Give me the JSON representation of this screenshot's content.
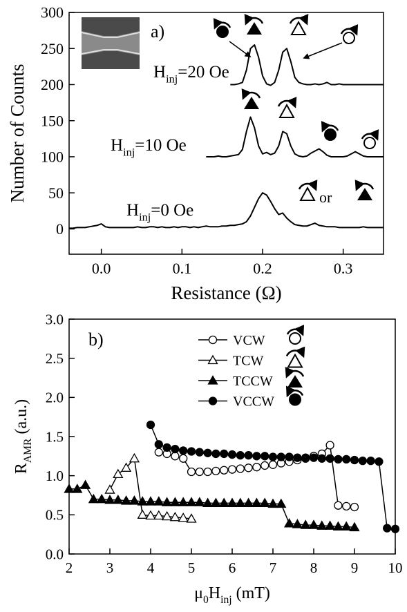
{
  "chart_data": [
    {
      "type": "line",
      "xlabel": "Resistance (Ω)",
      "ylabel": "Number of Counts",
      "xlim": [
        -0.04,
        0.35
      ],
      "ylim": [
        -35,
        300
      ],
      "xticks": [
        {
          "value": 0,
          "label": "0.0"
        },
        0.1,
        0.2,
        0.3
      ],
      "yticks": [
        0,
        50,
        100,
        150,
        200,
        250,
        300
      ],
      "grid": false,
      "annotations": [
        {
          "text": "a)"
        },
        {
          "text": "or"
        }
      ],
      "x": [
        -0.04,
        -0.035,
        -0.03,
        -0.025,
        -0.02,
        -0.015,
        -0.01,
        -0.005,
        0,
        0.005,
        0.01,
        0.015,
        0.02,
        0.025,
        0.03,
        0.035,
        0.04,
        0.045,
        0.05,
        0.055,
        0.06,
        0.065,
        0.07,
        0.075,
        0.08,
        0.085,
        0.09,
        0.095,
        0.1,
        0.105,
        0.11,
        0.115,
        0.12,
        0.125,
        0.13,
        0.135,
        0.14,
        0.145,
        0.15,
        0.155,
        0.16,
        0.165,
        0.17,
        0.175,
        0.18,
        0.185,
        0.19,
        0.195,
        0.2,
        0.205,
        0.21,
        0.215,
        0.22,
        0.225,
        0.23,
        0.235,
        0.24,
        0.245,
        0.25,
        0.255,
        0.26,
        0.265,
        0.27,
        0.275,
        0.28,
        0.285,
        0.29,
        0.295,
        0.3,
        0.305,
        0.31,
        0.315,
        0.32,
        0.325,
        0.33,
        0.335,
        0.34,
        0.345,
        0.35
      ],
      "series": [
        {
          "label": [
            {
              "text": "H"
            },
            {
              "text": "inj",
              "sub": true
            },
            {
              "text": "=20 Oe"
            }
          ],
          "color": "#000000",
          "values": [
            null,
            null,
            null,
            null,
            null,
            null,
            null,
            null,
            null,
            null,
            null,
            null,
            null,
            null,
            null,
            null,
            null,
            null,
            null,
            null,
            null,
            null,
            null,
            null,
            null,
            null,
            null,
            null,
            null,
            null,
            null,
            null,
            null,
            null,
            null,
            null,
            null,
            null,
            null,
            null,
            200,
            200,
            201,
            203,
            220,
            250,
            255,
            238,
            212,
            201,
            199,
            203,
            220,
            245,
            250,
            232,
            210,
            203,
            201,
            200,
            200,
            201,
            200,
            201,
            203,
            200,
            200,
            201,
            200,
            200,
            200,
            200,
            200,
            200,
            200,
            200,
            200,
            200,
            200
          ]
        },
        {
          "label": [
            {
              "text": "H"
            },
            {
              "text": "inj",
              "sub": true
            },
            {
              "text": "=10 Oe"
            }
          ],
          "color": "#000000",
          "values": [
            null,
            null,
            null,
            null,
            null,
            null,
            null,
            null,
            null,
            null,
            null,
            null,
            null,
            null,
            null,
            null,
            null,
            null,
            null,
            null,
            null,
            null,
            null,
            null,
            null,
            null,
            null,
            null,
            null,
            null,
            null,
            null,
            null,
            null,
            100,
            100,
            100,
            101,
            100,
            100,
            101,
            102,
            103,
            110,
            135,
            155,
            140,
            115,
            104,
            106,
            103,
            105,
            115,
            135,
            132,
            115,
            104,
            101,
            100,
            101,
            105,
            108,
            111,
            107,
            102,
            100,
            100,
            100,
            100,
            101,
            104,
            107,
            104,
            101,
            100,
            100,
            100,
            100,
            100
          ]
        },
        {
          "label": [
            {
              "text": "H"
            },
            {
              "text": "inj",
              "sub": true
            },
            {
              "text": "=0 Oe"
            }
          ],
          "color": "#000000",
          "values": [
            1,
            1,
            2,
            2,
            2,
            3,
            4,
            5,
            7,
            3,
            2,
            2,
            2,
            2,
            2,
            2,
            2,
            3,
            2,
            2,
            3,
            3,
            2,
            3,
            2,
            2,
            3,
            2,
            3,
            3,
            2,
            3,
            2,
            3,
            4,
            3,
            3,
            3,
            4,
            4,
            5,
            5,
            6,
            7,
            10,
            18,
            30,
            42,
            50,
            47,
            38,
            28,
            20,
            22,
            15,
            10,
            6,
            5,
            4,
            4,
            6,
            8,
            5,
            4,
            3,
            3,
            3,
            2,
            2,
            2,
            2,
            2,
            2,
            3,
            2,
            2,
            2,
            2,
            2
          ]
        }
      ]
    },
    {
      "type": "line",
      "xlabel": [
        {
          "text": "μ"
        },
        {
          "text": "0",
          "sub": true
        },
        {
          "text": "H"
        },
        {
          "text": "inj",
          "sub": true
        },
        {
          "text": " (mT)"
        }
      ],
      "ylabel": [
        {
          "text": "R"
        },
        {
          "text": "AMR",
          "sub": true
        },
        {
          "text": " (a.u.)"
        }
      ],
      "xlim": [
        2,
        10
      ],
      "ylim": [
        0,
        3
      ],
      "xticks": [
        2,
        3,
        4,
        5,
        6,
        7,
        8,
        9,
        10
      ],
      "yticks": [
        {
          "value": 0,
          "label": "0.0"
        },
        0.5,
        {
          "value": 1,
          "label": "1.0"
        },
        1.5,
        {
          "value": 2,
          "label": "2.0"
        },
        2.5,
        {
          "value": 3,
          "label": "3.0"
        }
      ],
      "grid": false,
      "legend": "upper right",
      "annotations": [
        {
          "text": "b)"
        }
      ],
      "series": [
        {
          "name": "VCW",
          "marker": "open-circle",
          "color": "#000000",
          "x": [
            4.2,
            4.4,
            4.6,
            4.8,
            5.0,
            5.2,
            5.4,
            5.6,
            5.8,
            6.0,
            6.2,
            6.4,
            6.6,
            6.8,
            7.0,
            7.2,
            7.4,
            7.6,
            7.8,
            8.0,
            8.2,
            8.4,
            8.6,
            8.8,
            9.0
          ],
          "values": [
            1.3,
            1.28,
            1.25,
            1.22,
            1.05,
            1.05,
            1.05,
            1.06,
            1.07,
            1.08,
            1.09,
            1.1,
            1.11,
            1.13,
            1.14,
            1.16,
            1.18,
            1.2,
            1.22,
            1.25,
            1.28,
            1.39,
            0.62,
            0.61,
            0.6
          ]
        },
        {
          "name": "TCW",
          "marker": "open-triangle",
          "color": "#000000",
          "x": [
            3.0,
            3.2,
            3.4,
            3.6,
            3.8,
            4.0,
            4.2,
            4.4,
            4.6,
            4.8,
            5.0
          ],
          "values": [
            0.82,
            1.02,
            1.1,
            1.22,
            0.5,
            0.49,
            0.49,
            0.48,
            0.47,
            0.46,
            0.45
          ]
        },
        {
          "name": "TCCW",
          "marker": "filled-triangle",
          "color": "#000000",
          "x": [
            2.0,
            2.2,
            2.4,
            2.6,
            2.8,
            3.0,
            3.2,
            3.4,
            3.6,
            3.8,
            4.0,
            4.2,
            4.4,
            4.6,
            4.8,
            5.0,
            5.2,
            5.4,
            5.6,
            5.8,
            6.0,
            6.2,
            6.4,
            6.6,
            6.8,
            7.0,
            7.2,
            7.4,
            7.6,
            7.8,
            8.0,
            8.2,
            8.4,
            8.6,
            8.8,
            9.0
          ],
          "values": [
            0.83,
            0.83,
            0.88,
            0.7,
            0.7,
            0.69,
            0.69,
            0.68,
            0.68,
            0.67,
            0.67,
            0.67,
            0.66,
            0.66,
            0.66,
            0.66,
            0.66,
            0.65,
            0.65,
            0.65,
            0.65,
            0.65,
            0.65,
            0.65,
            0.65,
            0.64,
            0.64,
            0.39,
            0.38,
            0.37,
            0.37,
            0.36,
            0.36,
            0.35,
            0.35,
            0.34
          ]
        },
        {
          "name": "VCCW",
          "marker": "filled-circle",
          "color": "#000000",
          "x": [
            4.0,
            4.2,
            4.4,
            4.6,
            4.8,
            5.0,
            5.2,
            5.4,
            5.6,
            5.8,
            6.0,
            6.2,
            6.4,
            6.6,
            6.8,
            7.0,
            7.2,
            7.4,
            7.6,
            7.8,
            8.0,
            8.2,
            8.4,
            8.6,
            8.8,
            9.0,
            9.2,
            9.4,
            9.6,
            9.8,
            10.0
          ],
          "values": [
            1.65,
            1.4,
            1.36,
            1.34,
            1.32,
            1.31,
            1.3,
            1.29,
            1.28,
            1.28,
            1.27,
            1.26,
            1.26,
            1.25,
            1.25,
            1.24,
            1.24,
            1.24,
            1.23,
            1.23,
            1.23,
            1.22,
            1.22,
            1.21,
            1.21,
            1.2,
            1.19,
            1.19,
            1.18,
            0.33,
            0.32
          ]
        }
      ]
    }
  ]
}
